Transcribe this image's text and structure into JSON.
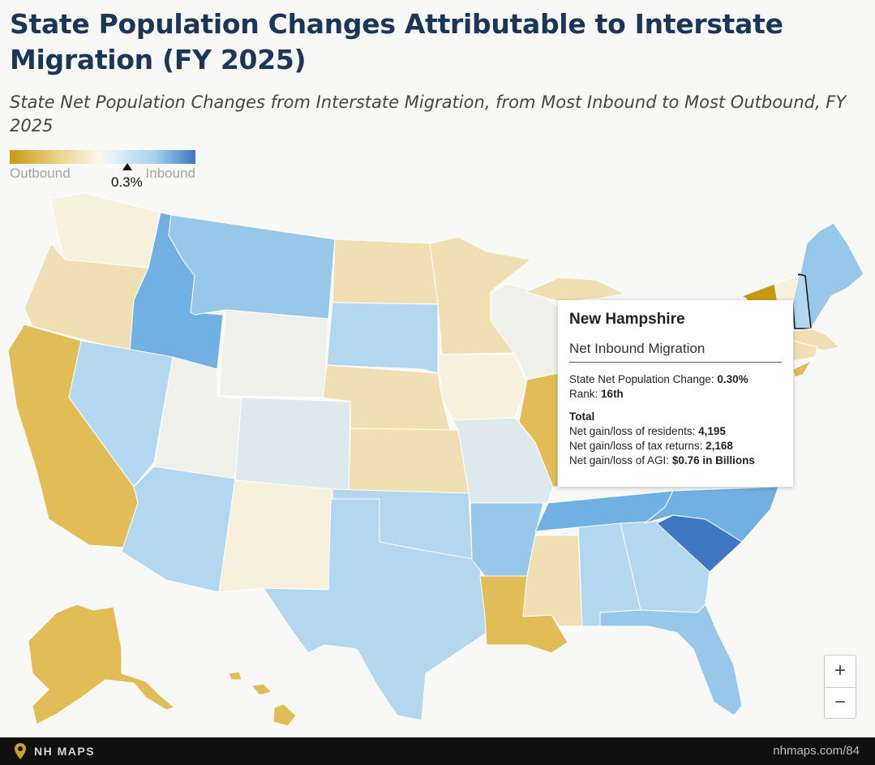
{
  "title": "State Population Changes Attributable to Interstate Migration (FY 2025)",
  "subtitle": "State Net Population Changes from Interstate Migration, from Most Inbound to Most Outbound, FY 2025",
  "legend": {
    "low_label": "Outbound",
    "high_label": "Inbound",
    "marker_value": "0.3%"
  },
  "colors": {
    "strong_outbound": "#c89a12",
    "outbound": "#e2bd57",
    "mild_outbound": "#f1dfb4",
    "neutral_warm": "#f6f0dc",
    "neutral": "#eef0e9",
    "neutral_cool": "#dde9ec",
    "mild_inbound": "#b3d7ef",
    "inbound": "#97c8ea",
    "strong_inbound": "#71b0e3",
    "strongest_inbound": "#3f77c4",
    "selected_outline": "#111111"
  },
  "tooltip": {
    "state": "New Hampshire",
    "category": "Net Inbound Migration",
    "change_label": "State Net Population Change:",
    "change_value": "0.30%",
    "rank_label": "Rank:",
    "rank_value": "16th",
    "total_heading": "Total",
    "residents_label": "Net gain/loss of residents:",
    "residents_value": "4,195",
    "returns_label": "Net gain/loss of tax returns:",
    "returns_value": "2,168",
    "agi_label": "Net gain/loss of AGI:",
    "agi_value": "$0.76 in Billions"
  },
  "zoom": {
    "in_label": "+",
    "out_label": "−"
  },
  "footer": {
    "brand": "NH MAPS",
    "site": "nhmaps.com/84"
  },
  "states": [
    {
      "name": "Washington",
      "cat": "neutral_warm"
    },
    {
      "name": "Oregon",
      "cat": "mild_outbound"
    },
    {
      "name": "California",
      "cat": "outbound"
    },
    {
      "name": "Idaho",
      "cat": "strong_inbound"
    },
    {
      "name": "Nevada",
      "cat": "mild_inbound"
    },
    {
      "name": "Montana",
      "cat": "inbound"
    },
    {
      "name": "Wyoming",
      "cat": "neutral"
    },
    {
      "name": "Utah",
      "cat": "neutral"
    },
    {
      "name": "Arizona",
      "cat": "mild_inbound"
    },
    {
      "name": "Colorado",
      "cat": "neutral_cool"
    },
    {
      "name": "New Mexico",
      "cat": "neutral_warm"
    },
    {
      "name": "North Dakota",
      "cat": "mild_outbound"
    },
    {
      "name": "South Dakota",
      "cat": "mild_inbound"
    },
    {
      "name": "Nebraska",
      "cat": "mild_outbound"
    },
    {
      "name": "Kansas",
      "cat": "mild_outbound"
    },
    {
      "name": "Oklahoma",
      "cat": "mild_inbound"
    },
    {
      "name": "Texas",
      "cat": "mild_inbound"
    },
    {
      "name": "Minnesota",
      "cat": "mild_outbound"
    },
    {
      "name": "Iowa",
      "cat": "neutral_warm"
    },
    {
      "name": "Missouri",
      "cat": "neutral_cool"
    },
    {
      "name": "Arkansas",
      "cat": "inbound"
    },
    {
      "name": "Louisiana",
      "cat": "outbound"
    },
    {
      "name": "Wisconsin",
      "cat": "neutral"
    },
    {
      "name": "Illinois",
      "cat": "outbound"
    },
    {
      "name": "Michigan",
      "cat": "mild_outbound"
    },
    {
      "name": "Mississippi",
      "cat": "mild_outbound"
    },
    {
      "name": "Alabama",
      "cat": "mild_inbound"
    },
    {
      "name": "Tennessee",
      "cat": "strong_inbound"
    },
    {
      "name": "Georgia",
      "cat": "mild_inbound"
    },
    {
      "name": "Florida",
      "cat": "inbound"
    },
    {
      "name": "South Carolina",
      "cat": "strongest_inbound"
    },
    {
      "name": "North Carolina",
      "cat": "strong_inbound"
    },
    {
      "name": "Maine",
      "cat": "inbound"
    },
    {
      "name": "New Hampshire",
      "cat": "mild_inbound"
    },
    {
      "name": "Vermont",
      "cat": "neutral_warm"
    },
    {
      "name": "Massachusetts",
      "cat": "mild_outbound"
    },
    {
      "name": "Connecticut",
      "cat": "mild_outbound"
    },
    {
      "name": "New York",
      "cat": "strong_outbound"
    },
    {
      "name": "New Jersey",
      "cat": "outbound"
    },
    {
      "name": "Alaska",
      "cat": "outbound"
    },
    {
      "name": "Hawaii",
      "cat": "outbound"
    }
  ]
}
